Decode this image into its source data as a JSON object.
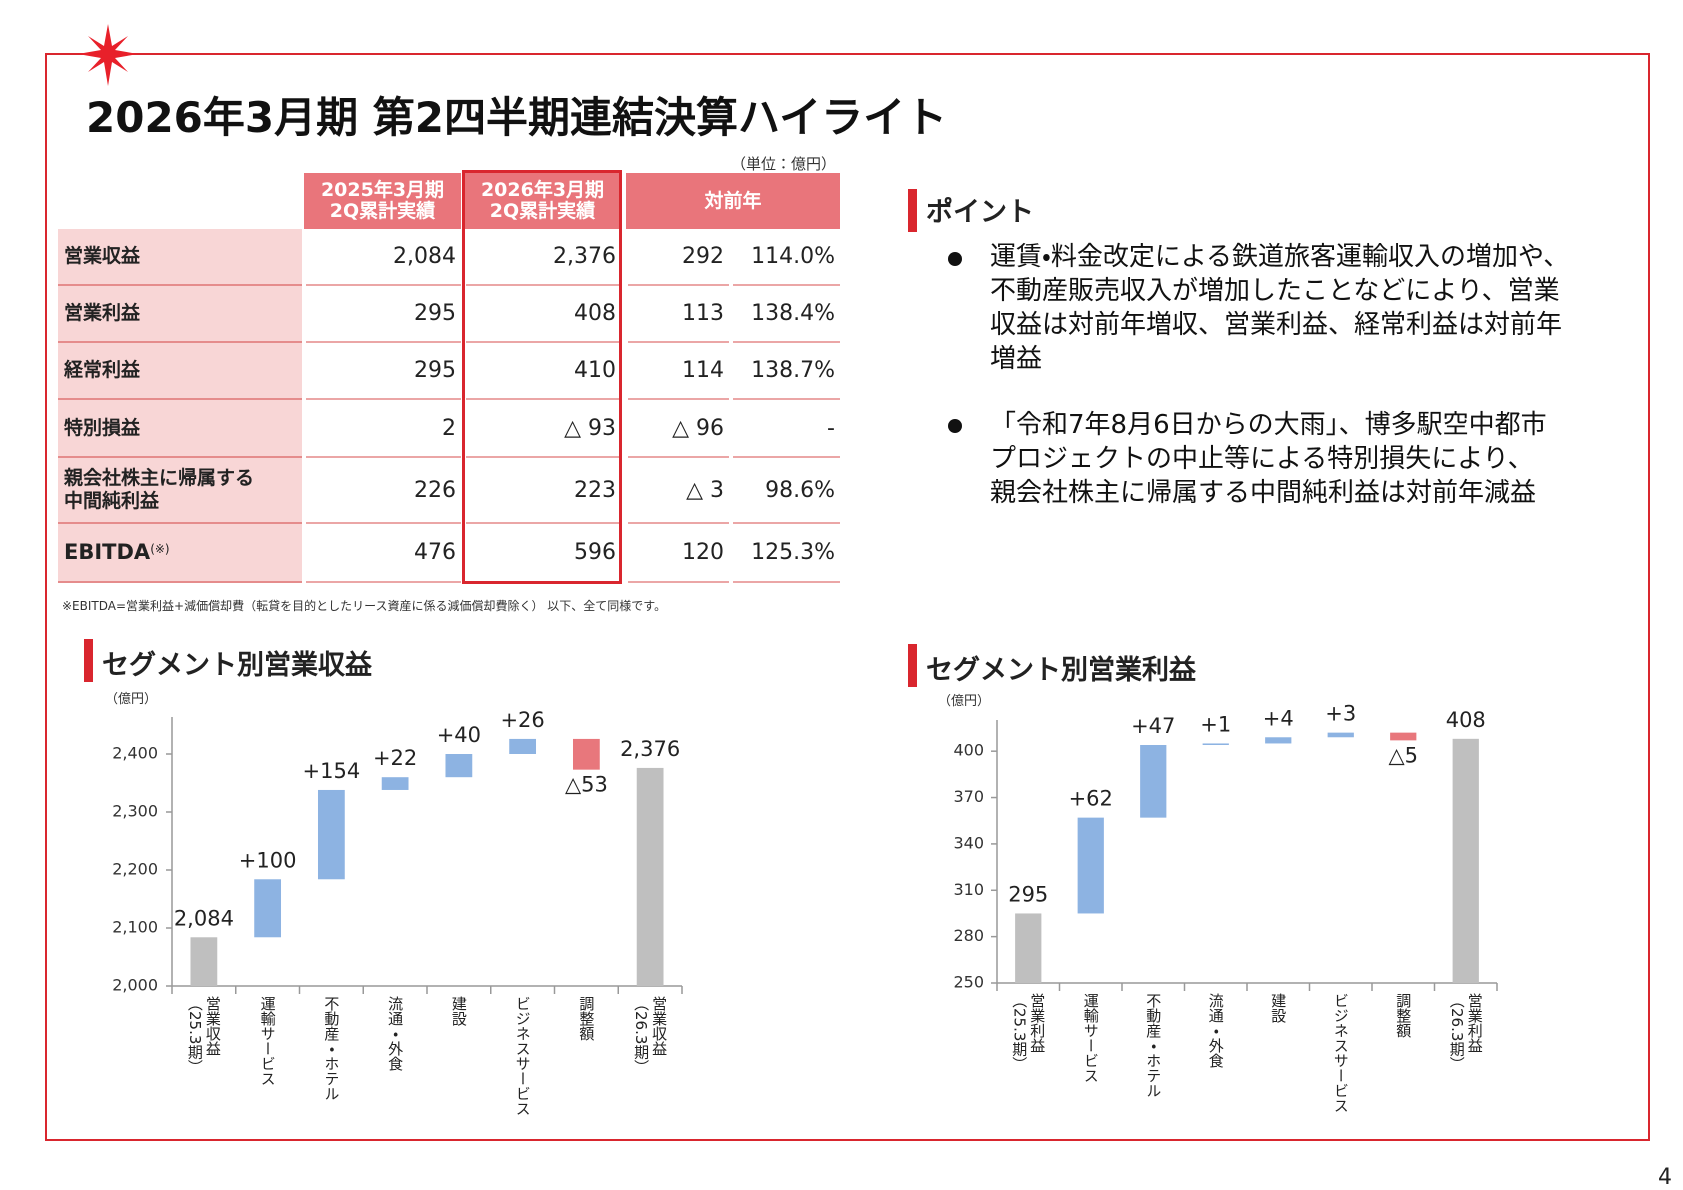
{
  "header": {
    "title": "2026年3月期 第2四半期連結決算ハイライト",
    "page": "4"
  },
  "table": {
    "unit": "（単位：億円）",
    "header": [
      "2025年3月期\n2Q累計実績",
      "2026年3月期\n2Q累計実績",
      "対前年"
    ],
    "rows": [
      {
        "label": "営業収益",
        "cells": [
          "2,084",
          "2,376",
          "292",
          "114.0%"
        ]
      },
      {
        "label": "営業利益",
        "cells": [
          "295",
          "408",
          "113",
          "138.4%"
        ]
      },
      {
        "label": "経常利益",
        "cells": [
          "295",
          "410",
          "114",
          "138.7%"
        ]
      },
      {
        "label": "特別損益",
        "cells": [
          "2",
          "△ 93",
          "△ 96",
          "-"
        ]
      },
      {
        "label": "親会社株主に帰属する\n中間純利益",
        "cells": [
          "226",
          "223",
          "△ 3",
          "98.6%"
        ]
      },
      {
        "label": "EBITDA",
        "note": "(※)",
        "cells": [
          "476",
          "596",
          "120",
          "125.3%"
        ]
      }
    ],
    "footnote": "※EBITDA=営業利益+減価償却費（転貸を目的としたリース資産に係る減価償却費除く） 以下、全て同様です。"
  },
  "points": {
    "title": "ポイント",
    "items": [
      "運賃・料金改定による鉄道旅客運輸収入の増加や、\n不動産販売収入が増加したことなどにより、営業\n収益は対前年増収、営業利益、経常利益は対前年\n増益",
      "「令和7年8月6日からの大雨」、博多駅空中都市\nプロジェクトの中止等による特別損失により、\n親会社株主に帰属する中間純利益は対前年減益"
    ]
  },
  "chart_data": [
    {
      "type": "waterfall",
      "title": "セグメント別営業収益",
      "y_label": "（億円）",
      "categories": [
        "営業収益\n（25.3期）",
        "運輸サービス",
        "不動産・ホテル",
        "流通・外食",
        "建設",
        "ビジネスサービス",
        "調整額",
        "営業収益\n（26.3期）"
      ],
      "values": [
        2084,
        100,
        154,
        22,
        40,
        26,
        -53,
        2376
      ],
      "value_labels": [
        "2,084",
        "+100",
        "+154",
        "+22",
        "+40",
        "+26",
        "△53",
        "2,376"
      ],
      "colors": {
        "total": "#bfbfbf",
        "increase": "#8db3e2",
        "decrease": "#e8777c"
      },
      "ylim": [
        2000,
        2450
      ],
      "yticks": [
        {
          "value": 2000,
          "label": "2,000"
        },
        {
          "value": 2100,
          "label": "2,100"
        },
        {
          "value": 2200,
          "label": "2,200"
        },
        {
          "value": 2300,
          "label": "2,300"
        },
        {
          "value": 2400,
          "label": "2,400"
        }
      ]
    },
    {
      "type": "waterfall",
      "title": "セグメント別営業利益",
      "y_label": "（億円）",
      "categories": [
        "営業利益\n（25.3期）",
        "運輸サービス",
        "不動産・ホテル",
        "流通・外食",
        "建設",
        "ビジネスサービス",
        "調整額",
        "営業利益\n（26.3期）"
      ],
      "values": [
        295,
        62,
        47,
        1,
        4,
        3,
        -5,
        408
      ],
      "value_labels": [
        "295",
        "+62",
        "+47",
        "+1",
        "+4",
        "+3",
        "△5",
        "408"
      ],
      "colors": {
        "total": "#bfbfbf",
        "increase": "#8db3e2",
        "decrease": "#e8777c"
      },
      "ylim": [
        250,
        415
      ],
      "yticks": [
        250,
        280,
        310,
        340,
        370,
        400
      ]
    }
  ]
}
